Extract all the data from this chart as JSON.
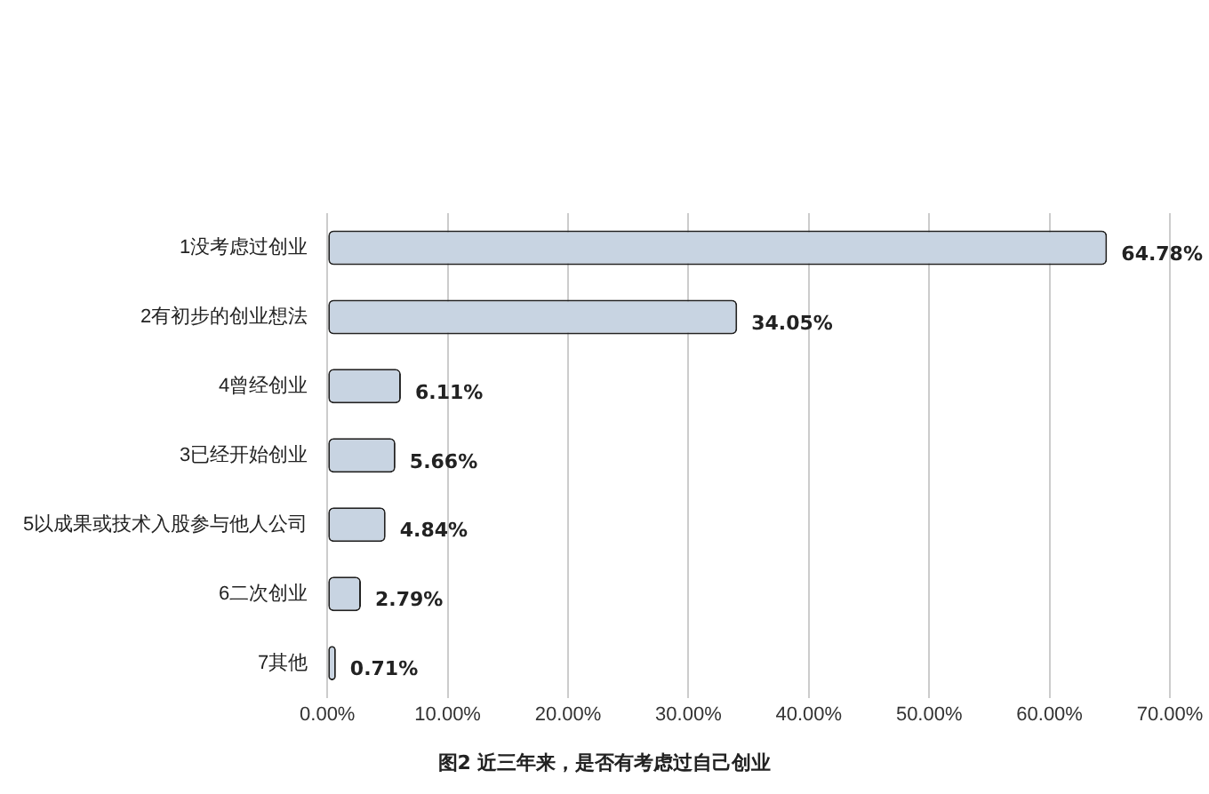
{
  "chart_data": {
    "type": "bar",
    "orientation": "horizontal",
    "categories": [
      "1没考虑过创业",
      "2有初步的创业想法",
      "4曾经创业",
      "3已经开始创业",
      "5以成果或技术入股参与他人公司",
      "6二次创业",
      "7其他"
    ],
    "values": [
      64.78,
      34.05,
      6.11,
      5.66,
      4.84,
      2.79,
      0.71
    ],
    "value_labels": [
      "64.78%",
      "34.05%",
      "6.11%",
      "5.66%",
      "4.84%",
      "2.79%",
      "0.71%"
    ],
    "color": "#c8d4e2",
    "xlim": [
      0,
      70
    ],
    "xticks": [
      {
        "value": 0,
        "label": "0.00%"
      },
      {
        "value": 10,
        "label": "10.00%"
      },
      {
        "value": 20,
        "label": "20.00%"
      },
      {
        "value": 30,
        "label": "30.00%"
      },
      {
        "value": 40,
        "label": "40.00%"
      },
      {
        "value": 50,
        "label": "50.00%"
      },
      {
        "value": 60,
        "label": "60.00%"
      },
      {
        "value": 70,
        "label": "70.00%"
      }
    ],
    "grid": "x",
    "annotations": [
      "图2 近三年来，是否有考虑过自己创业"
    ]
  }
}
